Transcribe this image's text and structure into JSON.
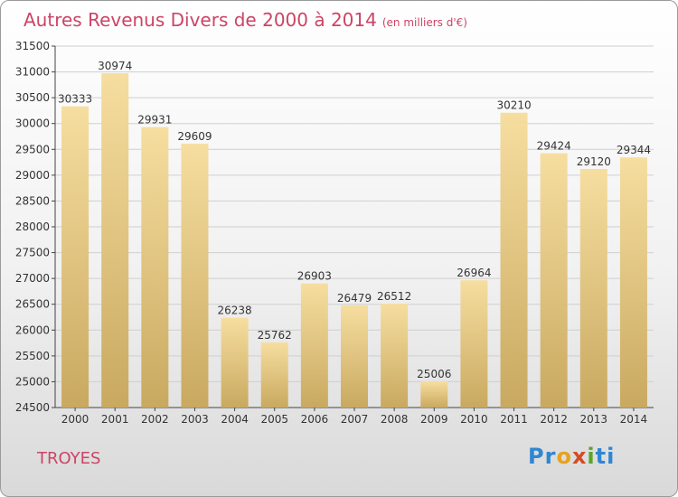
{
  "title": "Autres Revenus Divers de 2000 à 2014",
  "unit_note": "(en milliers d'€)",
  "commune": "TROYES",
  "logo_text": "Proxiti",
  "colors": {
    "title": "#cc4466",
    "bar_light": "#f6dea0",
    "bar_dark": "#c9a960",
    "axis": "#444444",
    "grid": "#cfcfcf"
  },
  "chart_data": {
    "type": "bar",
    "categories": [
      "2000",
      "2001",
      "2002",
      "2003",
      "2004",
      "2005",
      "2006",
      "2007",
      "2008",
      "2009",
      "2010",
      "2011",
      "2012",
      "2013",
      "2014"
    ],
    "values": [
      30333,
      30974,
      29931,
      29609,
      26238,
      25762,
      26903,
      26479,
      26512,
      25006,
      26964,
      30210,
      29424,
      29120,
      29344
    ],
    "yticks": [
      24500,
      25000,
      25500,
      26000,
      26500,
      27000,
      27500,
      28000,
      28500,
      29000,
      29500,
      30000,
      30500,
      31000,
      31500
    ],
    "ylim": [
      24500,
      31500
    ],
    "grid": true,
    "data_labels": true
  }
}
